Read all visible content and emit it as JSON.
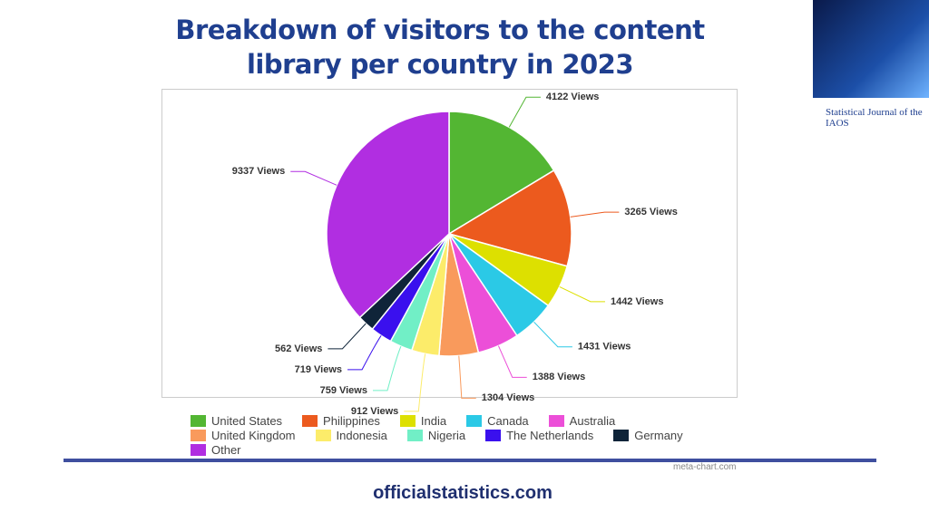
{
  "chart_data": {
    "type": "pie",
    "title": "Breakdown of visitors to the content library per country in 2023",
    "categories": [
      "United States",
      "Philippines",
      "India",
      "Canada",
      "Australia",
      "United Kingdom",
      "Indonesia",
      "Nigeria",
      "The Netherlands",
      "Germany",
      "Other"
    ],
    "values": [
      4122,
      3265,
      1442,
      1431,
      1388,
      1304,
      912,
      759,
      719,
      562,
      9337
    ],
    "value_labels": [
      "4122 Views",
      "3265 Views",
      "1442 Views",
      "1431 Views",
      "1388 Views",
      "1304 Views",
      "912 Views",
      "759 Views",
      "719 Views",
      "562 Views",
      "9337 Views"
    ],
    "colors": [
      "#53b633",
      "#ec5a1e",
      "#dde000",
      "#2bc9e6",
      "#ec4fd8",
      "#f99a5c",
      "#fcec6a",
      "#71efc6",
      "#3a10ee",
      "#0f2439",
      "#b12ee1"
    ],
    "credit": "meta-chart.com"
  },
  "footer": "officialstatistics.com",
  "journal": "Statistical Journal of the IAOS"
}
